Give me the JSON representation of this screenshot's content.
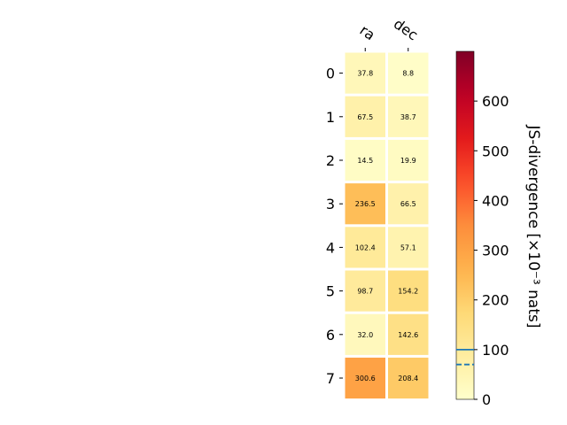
{
  "chart_data": {
    "type": "heatmap",
    "columns": [
      "ra",
      "dec"
    ],
    "rows": [
      "0",
      "1",
      "2",
      "3",
      "4",
      "5",
      "6",
      "7"
    ],
    "values": [
      [
        37.8,
        8.8
      ],
      [
        67.5,
        38.7
      ],
      [
        14.5,
        19.9
      ],
      [
        236.5,
        66.5
      ],
      [
        102.4,
        57.1
      ],
      [
        98.7,
        154.2
      ],
      [
        32.0,
        142.6
      ],
      [
        300.6,
        208.4
      ]
    ],
    "labels": [
      [
        "37.8",
        "8.8"
      ],
      [
        "67.5",
        "38.7"
      ],
      [
        "14.5",
        "19.9"
      ],
      [
        "236.5",
        "66.5"
      ],
      [
        "102.4",
        "57.1"
      ],
      [
        "98.7",
        "154.2"
      ],
      [
        "32.0",
        "142.6"
      ],
      [
        "300.6",
        "208.4"
      ]
    ],
    "colormap": "YlOrRd",
    "colorbar": {
      "label": "JS-divergence [×10⁻³ nats]",
      "range": [
        0,
        700
      ],
      "ticks": [
        "0",
        "100",
        "200",
        "300",
        "400",
        "500",
        "600"
      ],
      "tick_values": [
        0,
        100,
        200,
        300,
        400,
        500,
        600
      ],
      "reference_solid": 100,
      "reference_dashed": 70,
      "reference_color": "#1f77b4"
    }
  }
}
